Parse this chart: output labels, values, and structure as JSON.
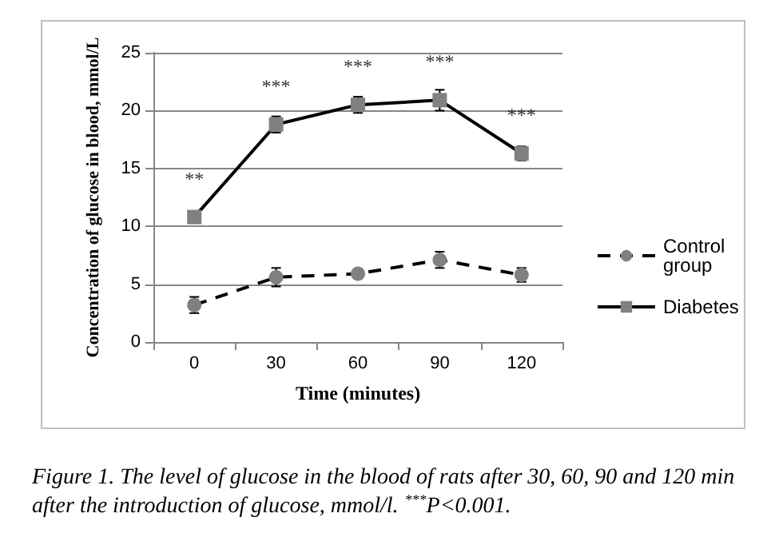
{
  "chart_data": {
    "type": "line",
    "xlabel": "Time (minutes)",
    "ylabel": "Concentration of glucose in blood, mmol/L",
    "categories": [
      "0",
      "30",
      "60",
      "90",
      "120"
    ],
    "ylim": [
      0,
      25
    ],
    "yticks": [
      0,
      5,
      10,
      15,
      20,
      25
    ],
    "grid": "y",
    "legend": "right",
    "series": [
      {
        "name": "Control group",
        "color": "#808080",
        "marker": "circle",
        "line_style": "dashed",
        "values": [
          3.2,
          5.6,
          5.9,
          7.1,
          5.8
        ],
        "errors": [
          0.7,
          0.8,
          0.4,
          0.7,
          0.6
        ]
      },
      {
        "name": "Diabetes",
        "color": "#808080",
        "marker": "square",
        "line_style": "solid",
        "values": [
          10.8,
          18.8,
          20.5,
          20.9,
          16.3
        ],
        "errors": [
          0.5,
          0.7,
          0.7,
          0.9,
          0.6
        ]
      }
    ],
    "annotations": [
      {
        "text": "**",
        "x": "0",
        "y": 10.8
      },
      {
        "text": "***",
        "x": "30",
        "y": 18.8
      },
      {
        "text": "***",
        "x": "60",
        "y": 20.5
      },
      {
        "text": "***",
        "x": "90",
        "y": 20.9
      },
      {
        "text": "***",
        "x": "120",
        "y": 16.3
      },
      "Figure 1. The level of glucose in the blood of rats after 30, 60, 90 and 120 min after the introduction of glucose, mmol/l. $^{***}$P<0.001."
    ]
  }
}
